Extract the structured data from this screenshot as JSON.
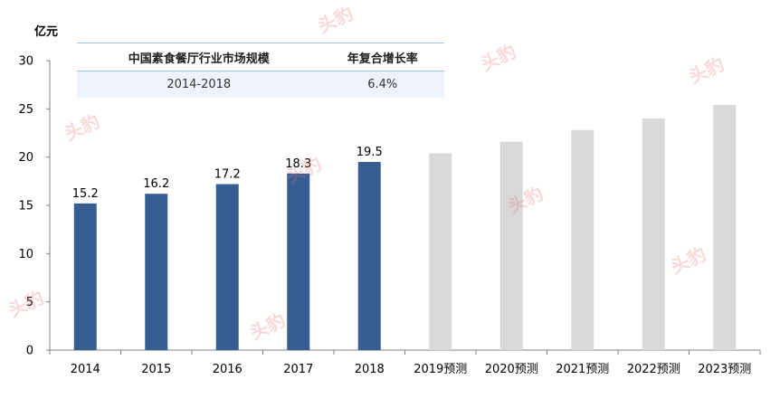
{
  "unit_label": "亿元",
  "table": {
    "headers": [
      "中国素食餐厅行业市场规模",
      "年复合增长率"
    ],
    "rows": [
      [
        "2014-2018",
        "6.4%"
      ]
    ]
  },
  "watermark": "头豹",
  "colors": {
    "actual": "#365e91",
    "forecast": "#d9d9d9"
  },
  "chart_data": {
    "type": "bar",
    "categories": [
      "2014",
      "2015",
      "2016",
      "2017",
      "2018",
      "2019预测",
      "2020预测",
      "2021预测",
      "2022预测",
      "2023预测"
    ],
    "values": [
      15.2,
      16.2,
      17.2,
      18.3,
      19.5,
      20.4,
      21.6,
      22.8,
      24.0,
      25.4
    ],
    "data_labels": [
      "15.2",
      "16.2",
      "17.2",
      "18.3",
      "19.5",
      "",
      "",
      "",
      "",
      ""
    ],
    "forecast_from_index": 5,
    "ylim": [
      0,
      30
    ],
    "yticks": [
      0,
      5,
      10,
      15,
      20,
      25,
      30
    ],
    "grid": false
  }
}
